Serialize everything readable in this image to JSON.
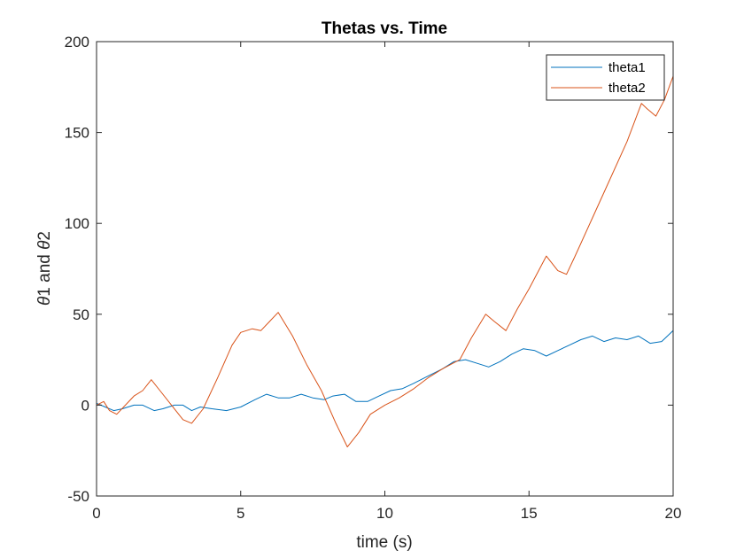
{
  "chart_data": {
    "type": "line",
    "title": "Thetas vs. Time",
    "xlabel": "time (s)",
    "ylabel_parts": [
      "θ",
      "1 and ",
      "θ",
      "2"
    ],
    "xlim": [
      0,
      20
    ],
    "ylim": [
      -50,
      200
    ],
    "xticks": [
      "0",
      "5",
      "10",
      "15",
      "20"
    ],
    "yticks": [
      "-50",
      "0",
      "50",
      "100",
      "150",
      "200"
    ],
    "grid": false,
    "legend_position": "top-right",
    "series": [
      {
        "name": "theta1",
        "color": "#0072bd",
        "x": [
          0,
          0.3,
          0.6,
          0.9,
          1.3,
          1.6,
          2.0,
          2.3,
          2.7,
          3.0,
          3.3,
          3.6,
          4.0,
          4.5,
          5.0,
          5.5,
          5.9,
          6.3,
          6.7,
          7.1,
          7.5,
          7.9,
          8.2,
          8.6,
          9.0,
          9.4,
          9.8,
          10.2,
          10.6,
          11.0,
          11.5,
          12.0,
          12.4,
          12.8,
          13.2,
          13.6,
          14.0,
          14.4,
          14.8,
          15.2,
          15.6,
          16.0,
          16.4,
          16.8,
          17.2,
          17.6,
          18.0,
          18.4,
          18.8,
          19.2,
          19.6,
          20.0
        ],
        "y": [
          1,
          -1,
          -3,
          -2,
          0,
          0,
          -3,
          -2,
          0,
          0,
          -3,
          -1,
          -2,
          -3,
          -1,
          3,
          6,
          4,
          4,
          6,
          4,
          3,
          5,
          6,
          2,
          2,
          5,
          8,
          9,
          12,
          16,
          20,
          24,
          25,
          23,
          21,
          24,
          28,
          31,
          30,
          27,
          30,
          33,
          36,
          38,
          35,
          37,
          36,
          38,
          34,
          35,
          41
        ]
      },
      {
        "name": "theta2",
        "color": "#d95319",
        "x": [
          0,
          0.25,
          0.45,
          0.7,
          1.0,
          1.3,
          1.6,
          1.9,
          2.2,
          2.6,
          3.0,
          3.3,
          3.7,
          4.2,
          4.7,
          5.0,
          5.4,
          5.7,
          6.0,
          6.3,
          6.8,
          7.3,
          7.8,
          8.3,
          8.7,
          9.1,
          9.5,
          10.0,
          10.5,
          11.0,
          11.5,
          12.0,
          12.6,
          13.0,
          13.5,
          13.8,
          14.2,
          14.6,
          15.0,
          15.6,
          16.0,
          16.3,
          16.6,
          17.2,
          17.8,
          18.4,
          18.9,
          19.1,
          19.4,
          19.7,
          20.0
        ],
        "y": [
          0,
          2,
          -3,
          -5,
          0,
          5,
          8,
          14,
          8,
          0,
          -8,
          -10,
          -2,
          15,
          33,
          40,
          42,
          41,
          46,
          51,
          38,
          22,
          8,
          -10,
          -23,
          -15,
          -5,
          0,
          4,
          9,
          15,
          20,
          25,
          37,
          50,
          46,
          41,
          53,
          64,
          82,
          74,
          72,
          82,
          103,
          124,
          145,
          166,
          163,
          159,
          168,
          181
        ]
      }
    ]
  }
}
